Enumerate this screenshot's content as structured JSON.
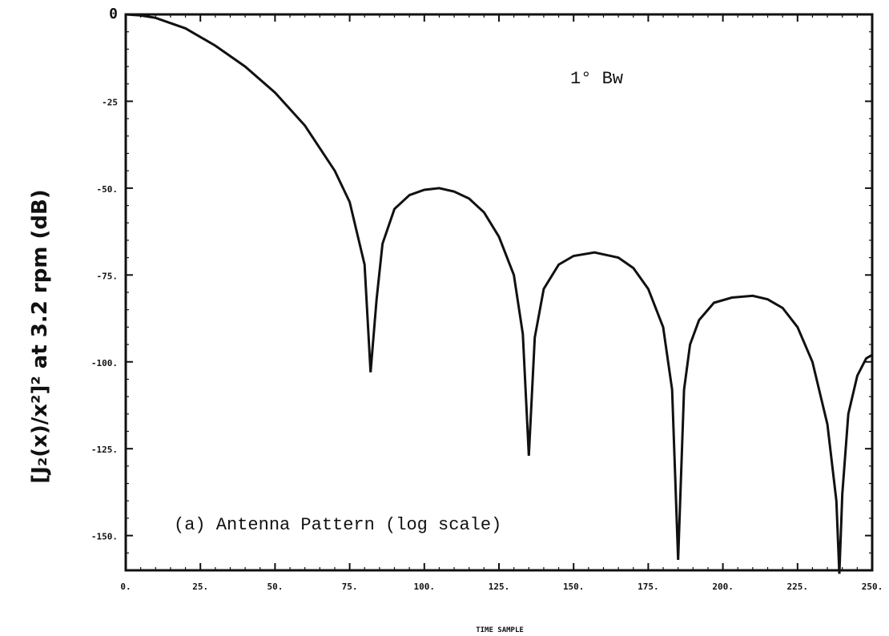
{
  "chart_data": {
    "type": "line",
    "xlabel": "TIME SAMPLE",
    "ylabel": "[J₂(x)/x²]² at 3.2 rpm (dB)",
    "xlim": [
      0,
      250
    ],
    "ylim": [
      -160,
      0
    ],
    "grid": false,
    "xticks": [
      0,
      25,
      50,
      75,
      100,
      125,
      150,
      175,
      200,
      225,
      250
    ],
    "xtick_labels": [
      "0.",
      "25.",
      "50.",
      "75.",
      "100.",
      "125.",
      "150.",
      "175.",
      "200.",
      "225.",
      "250."
    ],
    "yticks": [
      0,
      -25,
      -50,
      -75,
      -100,
      -125,
      -150
    ],
    "ytick_labels": [
      "0",
      "-25",
      "-50.",
      "-75.",
      "-100.",
      "-125.",
      "-150."
    ],
    "annotations": [
      "1° Bw",
      "(a) Antenna Pattern (log scale)"
    ],
    "series": [
      {
        "x": [
          0,
          5,
          10,
          20,
          30,
          40,
          50,
          60,
          70,
          75,
          80,
          82,
          84,
          86,
          90,
          95,
          100,
          105,
          110,
          115,
          120,
          125,
          130,
          133,
          135,
          137,
          140,
          145,
          150,
          157,
          165,
          170,
          175,
          180,
          183,
          185,
          187,
          189,
          192,
          197,
          203,
          210,
          215,
          220,
          225,
          230,
          235,
          238,
          239,
          240,
          242,
          245,
          248,
          250
        ],
        "values": [
          0,
          -0.3,
          -1,
          -4,
          -9,
          -15,
          -22.5,
          -32,
          -45,
          -54,
          -72,
          -103,
          -82,
          -66,
          -56,
          -52,
          -50.5,
          -50,
          -51,
          -53,
          -57,
          -64,
          -75,
          -92,
          -127,
          -93,
          -79,
          -72,
          -69.5,
          -68.5,
          -70,
          -73,
          -79,
          -90,
          -108,
          -157,
          -108,
          -95,
          -88,
          -83,
          -81.5,
          -81,
          -82,
          -84.5,
          -90,
          -100,
          -118,
          -140,
          -161,
          -138,
          -115,
          -104,
          -99,
          -98
        ]
      }
    ]
  }
}
